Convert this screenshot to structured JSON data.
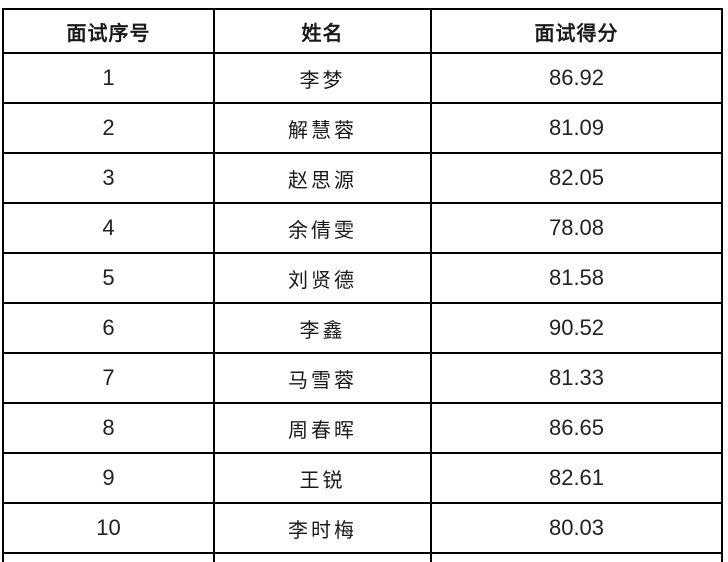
{
  "table": {
    "columns": [
      {
        "key": "no",
        "label": "面试序号"
      },
      {
        "key": "name",
        "label": "姓名"
      },
      {
        "key": "score",
        "label": "面试得分"
      }
    ],
    "rows": [
      {
        "no": "1",
        "name": "李梦",
        "score": "86.92"
      },
      {
        "no": "2",
        "name": "解慧蓉",
        "score": "81.09"
      },
      {
        "no": "3",
        "name": "赵思源",
        "score": "82.05"
      },
      {
        "no": "4",
        "name": "余倩雯",
        "score": "78.08"
      },
      {
        "no": "5",
        "name": "刘贤德",
        "score": "81.58"
      },
      {
        "no": "6",
        "name": "李鑫",
        "score": "90.52"
      },
      {
        "no": "7",
        "name": "马雪蓉",
        "score": "81.33"
      },
      {
        "no": "8",
        "name": "周春晖",
        "score": "86.65"
      },
      {
        "no": "9",
        "name": "王锐",
        "score": "82.61"
      },
      {
        "no": "10",
        "name": "李时梅",
        "score": "80.03"
      }
    ]
  },
  "colors": {
    "border": "#000000",
    "text": "#1a1a1a",
    "background": "#ffffff"
  }
}
